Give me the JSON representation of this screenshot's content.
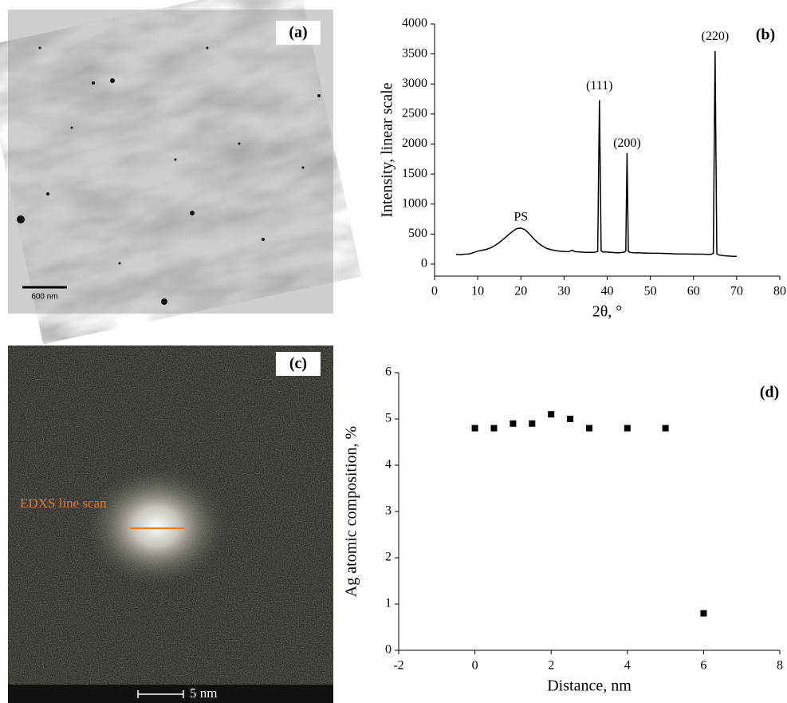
{
  "chart_data": [
    {
      "type": "line",
      "label": "(b)",
      "xlabel": "2θ, °",
      "ylabel": "Intensity, linear scale",
      "xlim": [
        0,
        80
      ],
      "ylim": [
        -200,
        4000
      ],
      "xticks": [
        0,
        10,
        20,
        30,
        40,
        50,
        60,
        70,
        80
      ],
      "yticks": [
        0,
        500,
        1000,
        1500,
        2000,
        2500,
        3000,
        3500,
        4000
      ],
      "color": "#000000",
      "x": [
        5,
        6,
        7,
        8,
        9,
        10,
        11,
        12,
        13,
        14,
        15,
        16,
        17,
        18,
        19,
        20,
        21,
        22,
        23,
        24,
        25,
        26,
        27,
        28,
        29,
        30,
        31,
        32,
        32.5,
        33,
        34,
        35,
        36,
        37,
        37.8,
        38.2,
        38.6,
        39,
        40,
        41,
        42,
        43,
        44,
        44.3,
        44.6,
        44.9,
        45.3,
        46,
        48,
        50,
        52,
        54,
        56,
        58,
        60,
        62,
        64,
        64.6,
        65.0,
        65.4,
        66,
        67,
        68,
        69,
        70
      ],
      "values": [
        160,
        155,
        165,
        170,
        190,
        215,
        230,
        245,
        270,
        310,
        360,
        420,
        480,
        540,
        590,
        600,
        570,
        500,
        420,
        350,
        300,
        260,
        240,
        225,
        215,
        210,
        205,
        230,
        205,
        205,
        200,
        195,
        195,
        195,
        210,
        2730,
        220,
        200,
        200,
        195,
        190,
        190,
        200,
        220,
        1850,
        210,
        195,
        190,
        185,
        180,
        180,
        175,
        170,
        170,
        165,
        165,
        160,
        180,
        3550,
        170,
        150,
        140,
        135,
        130,
        130
      ],
      "annotations": [
        {
          "text": "PS",
          "x": 20,
          "y": 770
        },
        {
          "text": "(111)",
          "x": 38.2,
          "y": 2960
        },
        {
          "text": "(200)",
          "x": 44.6,
          "y": 2000
        },
        {
          "text": "(220)",
          "x": 65,
          "y": 3780
        }
      ]
    },
    {
      "type": "scatter",
      "label": "(d)",
      "xlabel": "Distance, nm",
      "ylabel": "Ag atomic composition, %",
      "xlim": [
        -2,
        8
      ],
      "ylim": [
        0,
        6
      ],
      "xticks": [
        -2,
        0,
        2,
        4,
        6,
        8
      ],
      "yticks": [
        0,
        1,
        2,
        3,
        4,
        5,
        6
      ],
      "color": "#000000",
      "x": [
        0,
        0.5,
        1,
        1.5,
        2,
        2.5,
        3,
        4,
        5,
        6
      ],
      "values": [
        4.8,
        4.8,
        4.9,
        4.9,
        5.1,
        5.0,
        4.8,
        4.8,
        4.8,
        0.8
      ]
    }
  ],
  "images": [
    {
      "label": "(a)",
      "scale_bar": "600 nm"
    },
    {
      "label": "(c)",
      "scale_bar": "5 nm",
      "annotation": "EDXS line scan"
    }
  ]
}
